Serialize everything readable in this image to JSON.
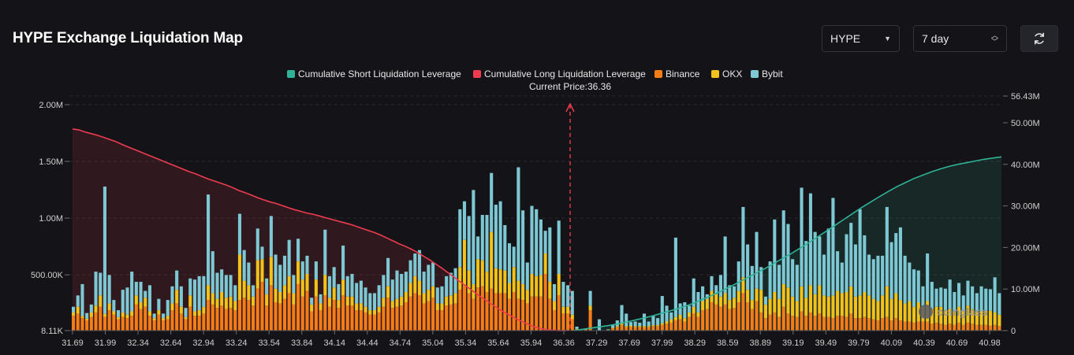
{
  "header": {
    "title": "HYPE Exchange Liquidation Map",
    "coin_select": "HYPE",
    "range_select": "7 day",
    "icons": {
      "coin_caret": "caret-down-icon",
      "range_caret": "up-down-arrows-icon",
      "refresh": "refresh-icon"
    }
  },
  "watermark": "coinglass",
  "chart_data": {
    "type": "bar",
    "current_price_label": "Current Price:36.36",
    "current_price": 36.36,
    "x_range": [
      31.69,
      40.98
    ],
    "x_ticks": [
      "31.69",
      "31.99",
      "32.34",
      "32.64",
      "32.94",
      "33.24",
      "33.54",
      "33.84",
      "34.14",
      "34.44",
      "34.74",
      "35.04",
      "35.34",
      "35.64",
      "35.94",
      "36.36",
      "37.29",
      "37.69",
      "37.99",
      "38.29",
      "38.59",
      "38.89",
      "39.19",
      "39.49",
      "39.79",
      "40.09",
      "40.39",
      "40.69",
      "40.98"
    ],
    "y_left": {
      "ticks": [
        "8.11K",
        "500.00K",
        "1.00M",
        "1.50M",
        "2.00M"
      ],
      "values": [
        8110,
        500000,
        1000000,
        1500000,
        2000000
      ],
      "range": [
        8110,
        2000000
      ]
    },
    "y_right": {
      "ticks": [
        "0",
        "10.00M",
        "20.00M",
        "30.00M",
        "40.00M",
        "50.00M",
        "56.43M"
      ],
      "values": [
        0,
        10000000,
        20000000,
        30000000,
        40000000,
        50000000,
        56430000
      ],
      "range": [
        0,
        56430000
      ]
    },
    "legend": [
      {
        "name": "Cumulative Short Liquidation Leverage",
        "color": "#2fb296"
      },
      {
        "name": "Cumulative Long Liquidation Leverage",
        "color": "#ee3b4f"
      },
      {
        "name": "Binance",
        "color": "#f47d17"
      },
      {
        "name": "OKX",
        "color": "#f3c21a"
      },
      {
        "name": "Bybit",
        "color": "#7dc8d3"
      }
    ],
    "bars": {
      "binance": [
        130,
        150,
        110,
        90,
        120,
        160,
        210,
        120,
        180,
        140,
        100,
        120,
        110,
        130,
        230,
        190,
        210,
        130,
        90,
        140,
        90,
        100,
        180,
        240,
        150,
        100,
        210,
        130,
        130,
        150,
        270,
        230,
        200,
        220,
        190,
        200,
        180,
        270,
        290,
        270,
        220,
        370,
        430,
        220,
        400,
        250,
        240,
        280,
        330,
        230,
        410,
        300,
        350,
        170,
        300,
        180,
        310,
        210,
        270,
        200,
        310,
        220,
        220,
        180,
        180,
        160,
        140,
        140,
        160,
        210,
        290,
        200,
        210,
        220,
        250,
        300,
        330,
        310,
        240,
        260,
        290,
        180,
        180,
        220,
        230,
        240,
        360,
        400,
        330,
        280,
        380,
        390,
        340,
        370,
        330,
        330,
        330,
        280,
        340,
        280,
        270,
        240,
        300,
        300,
        300,
        500,
        280,
        180,
        310,
        150,
        150,
        100,
        10,
        0,
        8,
        180,
        0,
        0,
        0,
        5,
        20,
        30,
        50,
        30,
        35,
        30,
        30,
        30,
        30,
        40,
        40,
        50,
        60,
        70,
        90,
        100,
        80,
        120,
        150,
        120,
        180,
        190,
        250,
        230,
        210,
        230,
        190,
        200,
        250,
        330,
        250,
        190,
        260,
        160,
        110,
        140,
        160,
        120,
        210,
        150,
        130,
        120,
        170,
        130,
        160,
        130,
        150,
        120,
        120,
        110,
        130,
        130,
        120,
        150,
        110,
        110,
        120,
        110,
        100,
        90,
        110,
        120,
        90,
        110,
        90,
        80,
        80,
        70,
        80,
        80,
        80,
        60,
        70,
        60,
        50,
        60,
        50,
        70,
        50,
        70,
        60,
        50,
        50,
        50,
        45,
        50,
        40
      ],
      "okx": [
        30,
        60,
        20,
        15,
        40,
        60,
        100,
        30,
        60,
        30,
        20,
        40,
        30,
        40,
        80,
        60,
        80,
        40,
        20,
        40,
        20,
        30,
        60,
        120,
        60,
        20,
        100,
        40,
        50,
        60,
        130,
        100,
        80,
        120,
        100,
        100,
        80,
        400,
        150,
        130,
        80,
        250,
        200,
        100,
        250,
        120,
        100,
        120,
        150,
        100,
        200,
        150,
        150,
        60,
        150,
        60,
        180,
        80,
        110,
        70,
        140,
        80,
        80,
        60,
        60,
        50,
        40,
        40,
        50,
        80,
        100,
        60,
        70,
        80,
        90,
        120,
        150,
        130,
        90,
        100,
        100,
        60,
        60,
        80,
        80,
        90,
        200,
        400,
        200,
        130,
        250,
        230,
        180,
        500,
        220,
        210,
        200,
        140,
        220,
        160,
        140,
        120,
        200,
        180,
        190,
        180,
        150,
        80,
        190,
        60,
        60,
        40,
        5,
        0,
        2,
        40,
        0,
        0,
        0,
        2,
        5,
        10,
        15,
        10,
        10,
        10,
        10,
        10,
        10,
        10,
        10,
        15,
        20,
        30,
        30,
        40,
        30,
        40,
        60,
        40,
        80,
        90,
        100,
        90,
        90,
        100,
        80,
        90,
        100,
        140,
        110,
        80,
        110,
        200,
        120,
        140,
        180,
        160,
        200,
        230,
        170,
        140,
        220,
        160,
        240,
        190,
        250,
        190,
        180,
        200,
        220,
        200,
        220,
        240,
        190,
        200,
        220,
        200,
        180,
        170,
        200,
        270,
        190,
        220,
        180,
        160,
        180,
        140,
        170,
        130,
        180,
        130,
        140,
        150,
        130,
        130,
        120,
        140,
        120,
        150,
        130,
        120,
        120,
        120,
        130,
        110,
        100
      ],
      "bybit": [
        50,
        100,
        280,
        50,
        70,
        300,
        200,
        1120,
        250,
        100,
        60,
        200,
        240,
        350,
        120,
        180,
        60,
        230,
        40,
        100,
        40,
        140,
        150,
        170,
        180,
        80,
        150,
        280,
        300,
        270,
        800,
        370,
        230,
        200,
        200,
        190,
        140,
        360,
        270,
        200,
        100,
        280,
        110,
        140,
        360,
        300,
        240,
        260,
        320,
        160,
        200,
        160,
        160,
        60,
        160,
        80,
        400,
        190,
        180,
        140,
        300,
        180,
        200,
        180,
        200,
        170,
        150,
        150,
        190,
        200,
        250,
        190,
        250,
        200,
        180,
        200,
        200,
        270,
        190,
        220,
        210,
        140,
        150,
        180,
        200,
        220,
        510,
        340,
        480,
        830,
        200,
        400,
        500,
        520,
        560,
        600,
        400,
        350,
        180,
        1000,
        650,
        240,
        600,
        590,
        490,
        200,
        480,
        150,
        470,
        220,
        190,
        210,
        20,
        0,
        2,
        130,
        0,
        100,
        0,
        5,
        30,
        50,
        160,
        110,
        30,
        40,
        30,
        110,
        40,
        80,
        60,
        240,
        140,
        60,
        700,
        100,
        140,
        60,
        250,
        180,
        130,
        40,
        130,
        80,
        190,
        500,
        130,
        100,
        260,
        620,
        400,
        300,
        500,
        200,
        70,
        330,
        640,
        300,
        650,
        560,
        330,
        320,
        870,
        500,
        810,
        550,
        430,
        360,
        600,
        860,
        350,
        270,
        510,
        560,
        460,
        760,
        500,
        360,
        350,
        400,
        350,
        700,
        500,
        530,
        640,
        420,
        340,
        330,
        280,
        180,
        420,
        240,
        160,
        170,
        190,
        260,
        170,
        210,
        140,
        220,
        200,
        160,
        220,
        200,
        190,
        310,
        190
      ]
    },
    "long_cumulative_M": [
      48.5,
      48.3,
      47.8,
      47.4,
      47.0,
      46.5,
      46.0,
      45.5,
      44.8,
      44.2,
      43.6,
      43.0,
      42.4,
      41.8,
      41.2,
      40.6,
      40.0,
      39.4,
      38.8,
      38.2,
      37.7,
      37.1,
      36.5,
      36.0,
      35.5,
      35.0,
      34.4,
      33.7,
      33.2,
      32.6,
      32.0,
      31.5,
      31.0,
      30.6,
      30.1,
      29.6,
      29.1,
      28.7,
      28.3,
      28.0,
      27.6,
      27.2,
      26.8,
      26.4,
      26.0,
      25.6,
      25.1,
      24.6,
      24.1,
      23.6,
      23.0,
      22.3,
      21.6,
      20.9,
      20.3,
      19.6,
      18.8,
      17.9,
      17.0,
      16.0,
      15.0,
      13.9,
      12.8,
      11.7,
      10.6,
      9.5,
      8.4,
      7.4,
      6.4,
      5.4,
      4.5,
      3.7,
      2.9,
      2.2,
      1.5,
      0.9,
      0.5,
      0.2,
      0.1,
      0.0
    ],
    "short_cumulative_M": [
      0.0,
      0.3,
      0.6,
      0.9,
      1.2,
      1.6,
      2.0,
      2.5,
      3.0,
      3.5,
      4.1,
      4.7,
      5.3,
      6.0,
      6.8,
      7.7,
      8.6,
      9.6,
      10.6,
      11.7,
      12.8,
      13.9,
      15.0,
      16.2,
      17.4,
      18.6,
      19.9,
      21.2,
      22.6,
      24.0,
      25.4,
      26.8,
      28.2,
      29.6,
      30.9,
      32.2,
      33.4,
      34.6,
      35.6,
      36.6,
      37.4,
      38.2,
      38.9,
      39.5,
      40.0,
      40.4,
      40.8,
      41.2,
      41.5,
      41.8
    ]
  }
}
